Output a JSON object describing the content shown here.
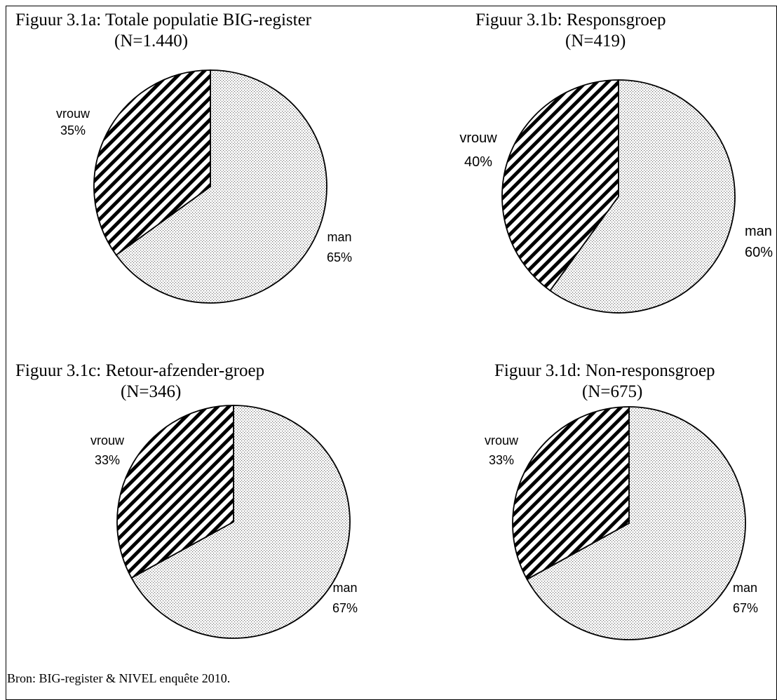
{
  "chart_data": [
    {
      "type": "pie",
      "title": "Figuur 3.1a: Totale populatie BIG-register",
      "subtitle": "(N=1.440)",
      "slices": [
        {
          "label": "vrouw",
          "value": 35,
          "value_label": "35%",
          "pattern": "diagonal-hatch"
        },
        {
          "label": "man",
          "value": 65,
          "value_label": "65%",
          "pattern": "dotted"
        }
      ]
    },
    {
      "type": "pie",
      "title": "Figuur 3.1b: Responsgroep",
      "subtitle": "(N=419)",
      "slices": [
        {
          "label": "vrouw",
          "value": 40,
          "value_label": "40%",
          "pattern": "diagonal-hatch"
        },
        {
          "label": "man",
          "value": 60,
          "value_label": "60%",
          "pattern": "dotted"
        }
      ]
    },
    {
      "type": "pie",
      "title": "Figuur 3.1c: Retour-afzender-groep",
      "subtitle": "(N=346)",
      "slices": [
        {
          "label": "vrouw",
          "value": 33,
          "value_label": "33%",
          "pattern": "diagonal-hatch"
        },
        {
          "label": "man",
          "value": 67,
          "value_label": "67%",
          "pattern": "dotted"
        }
      ]
    },
    {
      "type": "pie",
      "title": "Figuur 3.1d: Non-responsgroep",
      "subtitle": "(N=675)",
      "slices": [
        {
          "label": "vrouw",
          "value": 33,
          "value_label": "33%",
          "pattern": "diagonal-hatch"
        },
        {
          "label": "man",
          "value": 67,
          "value_label": "67%",
          "pattern": "dotted"
        }
      ]
    }
  ],
  "source_note": "Bron: BIG-register & NIVEL enquête 2010."
}
